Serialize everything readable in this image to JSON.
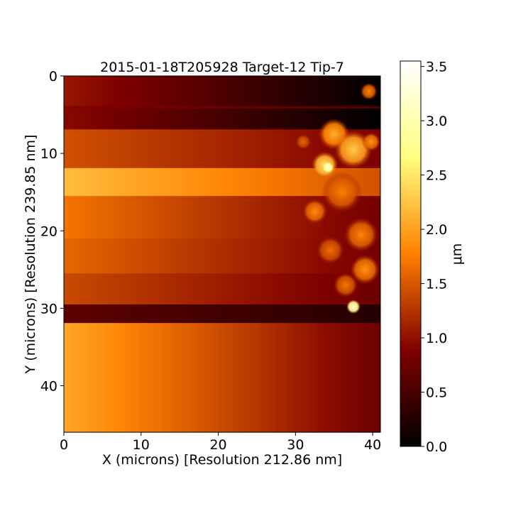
{
  "chart_data": {
    "type": "heatmap",
    "title": "2015-01-18T205928 Target-12 Tip-7",
    "xlabel": "X (microns) [Resolution 212.86 nm]",
    "ylabel": "Y (microns) [Resolution 239.85 nm]",
    "xlim": [
      0,
      41
    ],
    "ylim": [
      46,
      0
    ],
    "x_ticks": [
      0,
      10,
      20,
      30,
      40
    ],
    "y_ticks": [
      0,
      10,
      20,
      30,
      40
    ],
    "colorbar": {
      "label": "μm",
      "range": [
        0.0,
        3.55
      ],
      "ticks": [
        "0.0",
        "0.5",
        "1.0",
        "1.5",
        "2.0",
        "2.5",
        "3.0",
        "3.5"
      ],
      "colormap": "afmhot",
      "colors": [
        "#000000",
        "#800000",
        "#ff8000",
        "#ffff80",
        "#ffffff"
      ]
    },
    "bands": [
      {
        "y0": 0.0,
        "y1": 3.9,
        "left": 1.05,
        "right": 0.0
      },
      {
        "y0": 3.9,
        "y1": 4.2,
        "left": 0.9,
        "right": 0.6
      },
      {
        "y0": 4.2,
        "y1": 6.9,
        "left": 0.95,
        "right": 0.0
      },
      {
        "y0": 6.9,
        "y1": 11.9,
        "left": 1.45,
        "right": 0.85
      },
      {
        "y0": 11.9,
        "y1": 15.5,
        "left": 2.2,
        "right": 1.45
      },
      {
        "y0": 15.5,
        "y1": 21.0,
        "left": 1.7,
        "right": 0.8
      },
      {
        "y0": 21.0,
        "y1": 25.5,
        "left": 1.6,
        "right": 0.8
      },
      {
        "y0": 25.5,
        "y1": 29.5,
        "left": 1.4,
        "right": 0.75
      },
      {
        "y0": 29.5,
        "y1": 31.9,
        "left": 0.65,
        "right": 0.25
      },
      {
        "y0": 31.9,
        "y1": 46.0,
        "left": 2.05,
        "right": 0.75
      }
    ],
    "features": [
      {
        "x": 35.0,
        "y": 7.5,
        "r": 2.0,
        "v": 2.1
      },
      {
        "x": 37.5,
        "y": 9.5,
        "r": 2.4,
        "v": 2.3
      },
      {
        "x": 33.8,
        "y": 11.5,
        "r": 1.7,
        "v": 2.5
      },
      {
        "x": 34.2,
        "y": 11.8,
        "r": 0.8,
        "v": 3.3
      },
      {
        "x": 39.8,
        "y": 8.5,
        "r": 1.2,
        "v": 1.9
      },
      {
        "x": 36.0,
        "y": 15.0,
        "r": 2.6,
        "v": 1.75
      },
      {
        "x": 32.5,
        "y": 17.5,
        "r": 1.6,
        "v": 1.85
      },
      {
        "x": 38.5,
        "y": 20.5,
        "r": 2.2,
        "v": 1.8
      },
      {
        "x": 34.5,
        "y": 22.5,
        "r": 1.8,
        "v": 1.65
      },
      {
        "x": 39.0,
        "y": 25.0,
        "r": 1.9,
        "v": 1.9
      },
      {
        "x": 36.5,
        "y": 27.0,
        "r": 1.6,
        "v": 1.7
      },
      {
        "x": 39.5,
        "y": 2.0,
        "r": 1.1,
        "v": 1.8
      },
      {
        "x": 31.0,
        "y": 8.5,
        "r": 1.0,
        "v": 1.6
      },
      {
        "x": 37.5,
        "y": 29.8,
        "r": 0.9,
        "v": 3.3
      }
    ]
  }
}
